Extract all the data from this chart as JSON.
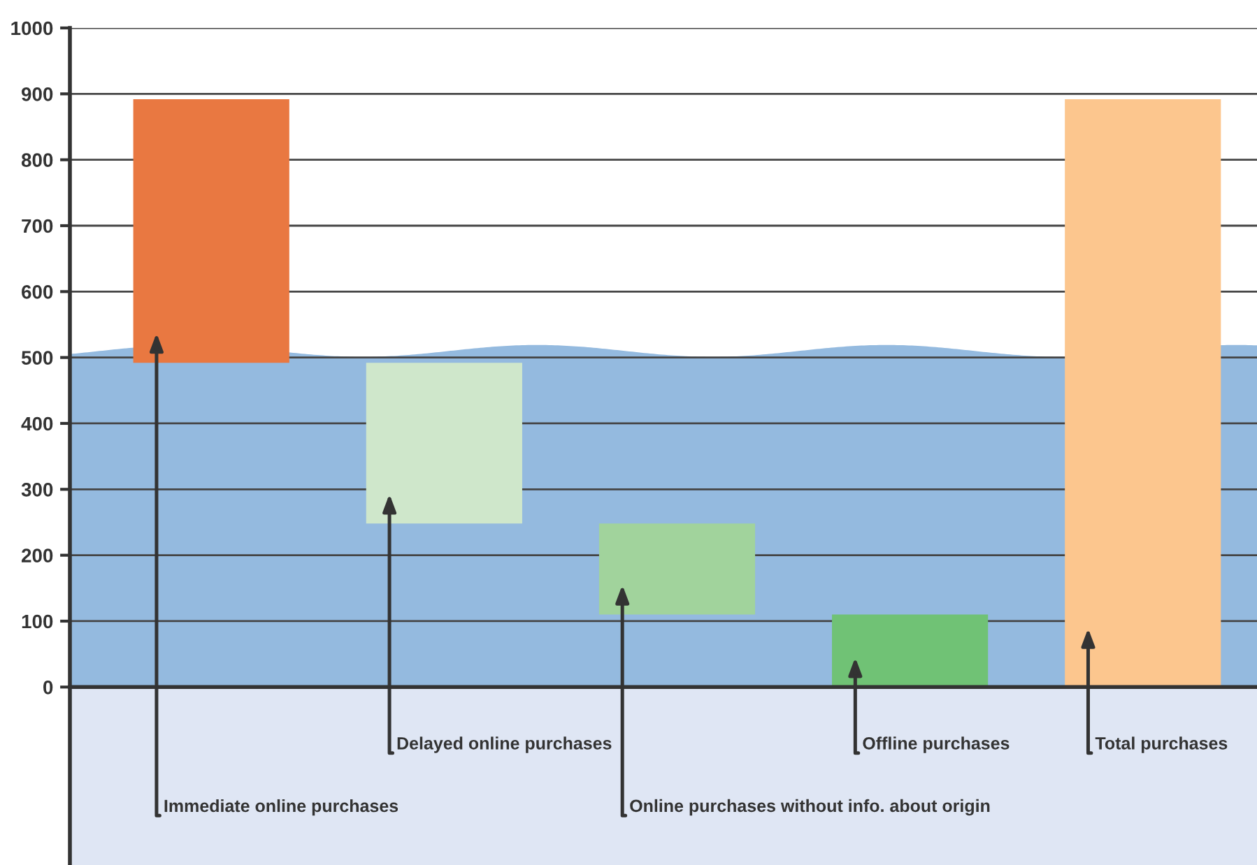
{
  "chart_data": {
    "type": "bar",
    "categories": [
      null,
      null,
      null,
      null,
      null
    ],
    "annotations": [
      "Immediate online purchases",
      "Delayed online purchases",
      "Online purchases without info. about origin",
      "Offline purchases",
      "Total purchases"
    ],
    "values": [
      400,
      244,
      138,
      110,
      892
    ],
    "base": [
      492,
      248,
      110,
      0,
      0
    ],
    "colors": [
      "#e97841",
      "#cfe7cb",
      "#a1d39c",
      "#70c275",
      "#fcc68e"
    ],
    "ylim": [
      -270,
      1000
    ],
    "yticks": [
      0,
      100,
      200,
      300,
      400,
      500,
      600,
      700,
      800,
      900,
      1000
    ],
    "grid": "y",
    "tick_labels": "y"
  }
}
